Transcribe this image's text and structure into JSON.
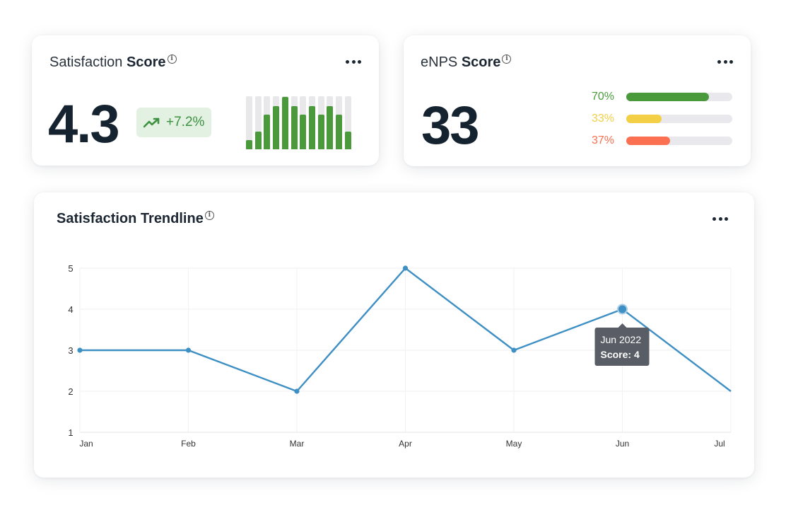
{
  "satisfaction_card": {
    "title_prefix": "Satisfaction ",
    "title_bold": "Score",
    "value": "4.3",
    "delta": "+7.2%",
    "mini_bars": [
      0.18,
      0.34,
      0.66,
      0.82,
      0.99,
      0.82,
      0.66,
      0.82,
      0.66,
      0.82,
      0.66,
      0.34
    ],
    "bar_color": "#4a9a3c"
  },
  "enps_card": {
    "title_prefix": "eNPS ",
    "title_bold": "Score",
    "value": "33",
    "rows": [
      {
        "pct": "70%",
        "fraction": 0.78,
        "color": "#4a9a3c"
      },
      {
        "pct": "33%",
        "fraction": 0.33,
        "color": "#f3cf45"
      },
      {
        "pct": "37%",
        "fraction": 0.41,
        "color": "#fa7050"
      }
    ]
  },
  "trend_card": {
    "title": "Satisfaction Trendline",
    "tooltip": {
      "line1": "Jun 2022",
      "line2": "Score: 4"
    }
  },
  "chart_data": {
    "type": "line",
    "title": "Satisfaction Trendline",
    "categories": [
      "Jan",
      "Feb",
      "Mar",
      "Apr",
      "May",
      "Jun",
      "Jul"
    ],
    "values": [
      3,
      3,
      2,
      5,
      3,
      4,
      2
    ],
    "ylim": [
      1,
      5
    ],
    "yticks": [
      1,
      2,
      3,
      4,
      5
    ],
    "grid": true,
    "line_color": "#3d8fc4",
    "highlight_index": 5
  }
}
